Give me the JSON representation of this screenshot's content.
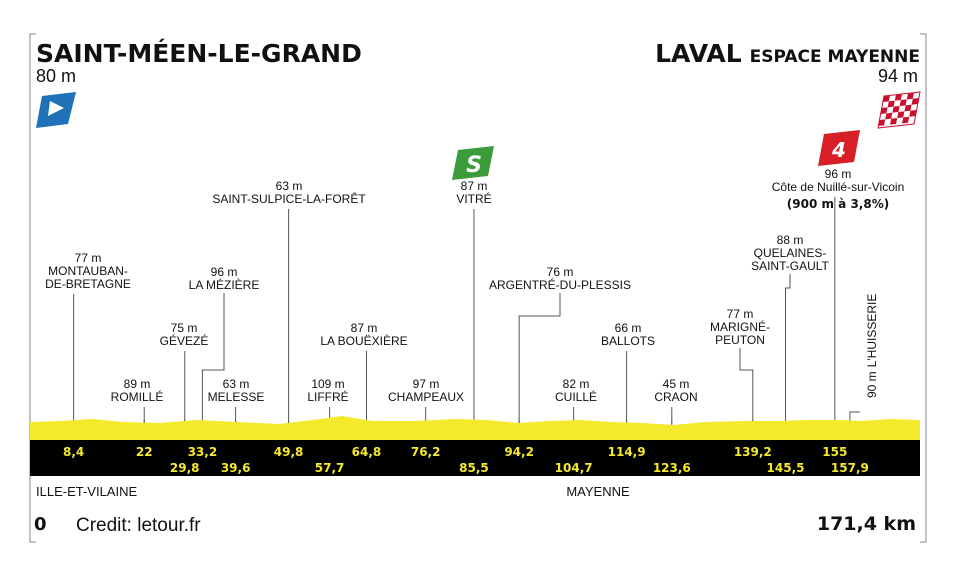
{
  "start": {
    "name": "SAINT-MÉEN-LE-GRAND",
    "altitude": "80 m"
  },
  "finish": {
    "name": "LAVAL",
    "name_suffix": "ESPACE MAYENNE",
    "altitude": "94 m"
  },
  "distance_start": "0",
  "distance_total": "171,4 km",
  "credit": "Credit: letour.fr",
  "regions": [
    "ILLE-ET-VILAINE",
    "MAYENNE"
  ],
  "sprint": {
    "icon": "sprint-s-icon",
    "label": "S",
    "color": "#3c9b3a"
  },
  "climb": {
    "icon": "category-4-climb-icon",
    "label": "4",
    "color": "#d81f26",
    "detail": "(900 m à 3,8%)"
  },
  "colors": {
    "profile": "#f5e92b",
    "road": "#000000",
    "km_text": "#f5e92b",
    "start_flag": "#1f72b8"
  },
  "chart_data": {
    "type": "area",
    "x_unit": "km",
    "distance_km": 171.4,
    "points": [
      {
        "km": 8.4,
        "altitude_label": "77 m",
        "name_lines": [
          "MONTAUBAN-",
          "DE-BRETAGNE"
        ],
        "km_label": "8,4"
      },
      {
        "km": 22,
        "altitude_label": "89 m",
        "name_lines": [
          "ROMILLÉ"
        ],
        "km_label": "22"
      },
      {
        "km": 29.8,
        "altitude_label": "75 m",
        "name_lines": [
          "GÉVEZÉ"
        ],
        "km_label": "29,8"
      },
      {
        "km": 33.2,
        "altitude_label": "96 m",
        "name_lines": [
          "LA MÉZIÈRE"
        ],
        "km_label": "33,2"
      },
      {
        "km": 39.6,
        "altitude_label": "63 m",
        "name_lines": [
          "MELESSE"
        ],
        "km_label": "39,6"
      },
      {
        "km": 49.8,
        "altitude_label": "63 m",
        "name_lines": [
          "SAINT-SULPICE-LA-FORÊT"
        ],
        "km_label": "49,8"
      },
      {
        "km": 57.7,
        "altitude_label": "109 m",
        "name_lines": [
          "LIFFRÉ"
        ],
        "km_label": "57,7"
      },
      {
        "km": 64.8,
        "altitude_label": "87 m",
        "name_lines": [
          "LA BOUËXIÈRE"
        ],
        "km_label": "64,8"
      },
      {
        "km": 76.2,
        "altitude_label": "97 m",
        "name_lines": [
          "CHAMPEAUX"
        ],
        "km_label": "76,2"
      },
      {
        "km": 85.5,
        "altitude_label": "87 m",
        "name_lines": [
          "VITRÉ"
        ],
        "km_label": "85,5"
      },
      {
        "km": 94.2,
        "altitude_label": "76 m",
        "name_lines": [
          "ARGENTRÉ-DU-PLESSIS"
        ],
        "km_label": "94,2"
      },
      {
        "km": 104.7,
        "altitude_label": "82 m",
        "name_lines": [
          "CUILLÉ"
        ],
        "km_label": "104,7"
      },
      {
        "km": 114.9,
        "altitude_label": "66 m",
        "name_lines": [
          "BALLOTS"
        ],
        "km_label": "114,9"
      },
      {
        "km": 123.6,
        "altitude_label": "45 m",
        "name_lines": [
          "CRAON"
        ],
        "km_label": "123,6"
      },
      {
        "km": 139.2,
        "altitude_label": "77 m",
        "name_lines": [
          "MARIGNÉ-",
          "PEUTON"
        ],
        "km_label": "139,2"
      },
      {
        "km": 145.5,
        "altitude_label": "88 m",
        "name_lines": [
          "QUELAINES-",
          "SAINT-GAULT"
        ],
        "km_label": "145,5"
      },
      {
        "km": 155,
        "altitude_label": "96 m",
        "name_lines": [
          "Côte de Nuillé-sur-Vicoin"
        ],
        "km_label": "155"
      },
      {
        "km": 157.9,
        "altitude_label": "90 m",
        "name_lines": [
          "L'HUISSERIE"
        ],
        "km_label": "157,9"
      }
    ]
  }
}
